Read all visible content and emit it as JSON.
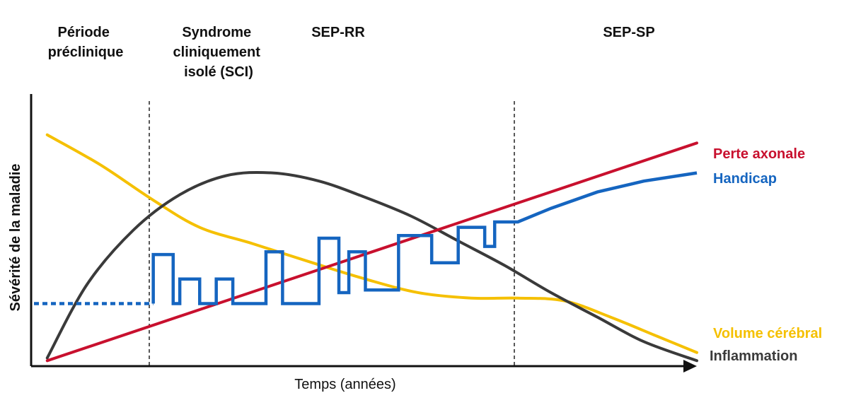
{
  "chart_data": {
    "type": "line",
    "title": "",
    "xlabel": "Temps (années)",
    "ylabel": "Sévérité de la maladie",
    "grid": false,
    "phases": [
      {
        "label_lines": [
          "Période",
          "préclinique"
        ]
      },
      {
        "label_lines": [
          "Syndrome",
          "cliniquement",
          "isolé (SCI)"
        ]
      },
      {
        "label_lines": [
          "SEP-RR"
        ]
      },
      {
        "label_lines": [
          "SEP-SP"
        ]
      }
    ],
    "colors": {
      "perte_axonale": "#c8102e",
      "handicap": "#1565c0",
      "volume_cerebral": "#f5c000",
      "inflammation": "#3a3a3a"
    },
    "series": [
      {
        "name": "Perte axonale",
        "color": "#c8102e",
        "points": [
          [
            0.02,
            0.02
          ],
          [
            1.0,
            0.82
          ]
        ]
      },
      {
        "name": "Handicap",
        "color": "#1565c0",
        "points": [
          [
            0.0,
            0.23
          ],
          [
            0.18,
            0.23
          ],
          [
            0.18,
            0.41
          ],
          [
            0.21,
            0.41
          ],
          [
            0.21,
            0.23
          ],
          [
            0.22,
            0.23
          ],
          [
            0.22,
            0.32
          ],
          [
            0.25,
            0.32
          ],
          [
            0.25,
            0.23
          ],
          [
            0.275,
            0.23
          ],
          [
            0.275,
            0.32
          ],
          [
            0.3,
            0.32
          ],
          [
            0.3,
            0.23
          ],
          [
            0.35,
            0.23
          ],
          [
            0.35,
            0.42
          ],
          [
            0.375,
            0.42
          ],
          [
            0.375,
            0.23
          ],
          [
            0.43,
            0.23
          ],
          [
            0.43,
            0.47
          ],
          [
            0.46,
            0.47
          ],
          [
            0.46,
            0.27
          ],
          [
            0.475,
            0.27
          ],
          [
            0.475,
            0.42
          ],
          [
            0.5,
            0.42
          ],
          [
            0.5,
            0.28
          ],
          [
            0.55,
            0.28
          ],
          [
            0.55,
            0.48
          ],
          [
            0.6,
            0.48
          ],
          [
            0.6,
            0.38
          ],
          [
            0.64,
            0.38
          ],
          [
            0.64,
            0.51
          ],
          [
            0.68,
            0.51
          ],
          [
            0.68,
            0.44
          ],
          [
            0.695,
            0.44
          ],
          [
            0.695,
            0.53
          ],
          [
            0.73,
            0.53
          ],
          [
            0.78,
            0.58
          ],
          [
            0.85,
            0.64
          ],
          [
            0.92,
            0.68
          ],
          [
            1.0,
            0.71
          ]
        ]
      },
      {
        "name": "Volume cérébral",
        "color": "#f5c000",
        "points": [
          [
            0.02,
            0.85
          ],
          [
            0.1,
            0.74
          ],
          [
            0.18,
            0.61
          ],
          [
            0.25,
            0.51
          ],
          [
            0.33,
            0.45
          ],
          [
            0.42,
            0.38
          ],
          [
            0.5,
            0.32
          ],
          [
            0.58,
            0.27
          ],
          [
            0.66,
            0.25
          ],
          [
            0.73,
            0.25
          ],
          [
            0.8,
            0.24
          ],
          [
            0.87,
            0.18
          ],
          [
            0.94,
            0.11
          ],
          [
            1.0,
            0.05
          ]
        ]
      },
      {
        "name": "Inflammation",
        "color": "#3a3a3a",
        "points": [
          [
            0.02,
            0.03
          ],
          [
            0.08,
            0.3
          ],
          [
            0.15,
            0.5
          ],
          [
            0.22,
            0.63
          ],
          [
            0.29,
            0.7
          ],
          [
            0.36,
            0.71
          ],
          [
            0.43,
            0.68
          ],
          [
            0.5,
            0.62
          ],
          [
            0.57,
            0.55
          ],
          [
            0.64,
            0.46
          ],
          [
            0.71,
            0.37
          ],
          [
            0.78,
            0.27
          ],
          [
            0.85,
            0.18
          ],
          [
            0.92,
            0.09
          ],
          [
            1.0,
            0.02
          ]
        ]
      }
    ],
    "series_labels": [
      {
        "text": "Perte axonale",
        "color": "#c8102e"
      },
      {
        "text": "Handicap",
        "color": "#1565c0"
      },
      {
        "text": "Volume cérébral",
        "color": "#f5c000"
      },
      {
        "text": "Inflammation",
        "color": "#3a3a3a"
      }
    ]
  }
}
